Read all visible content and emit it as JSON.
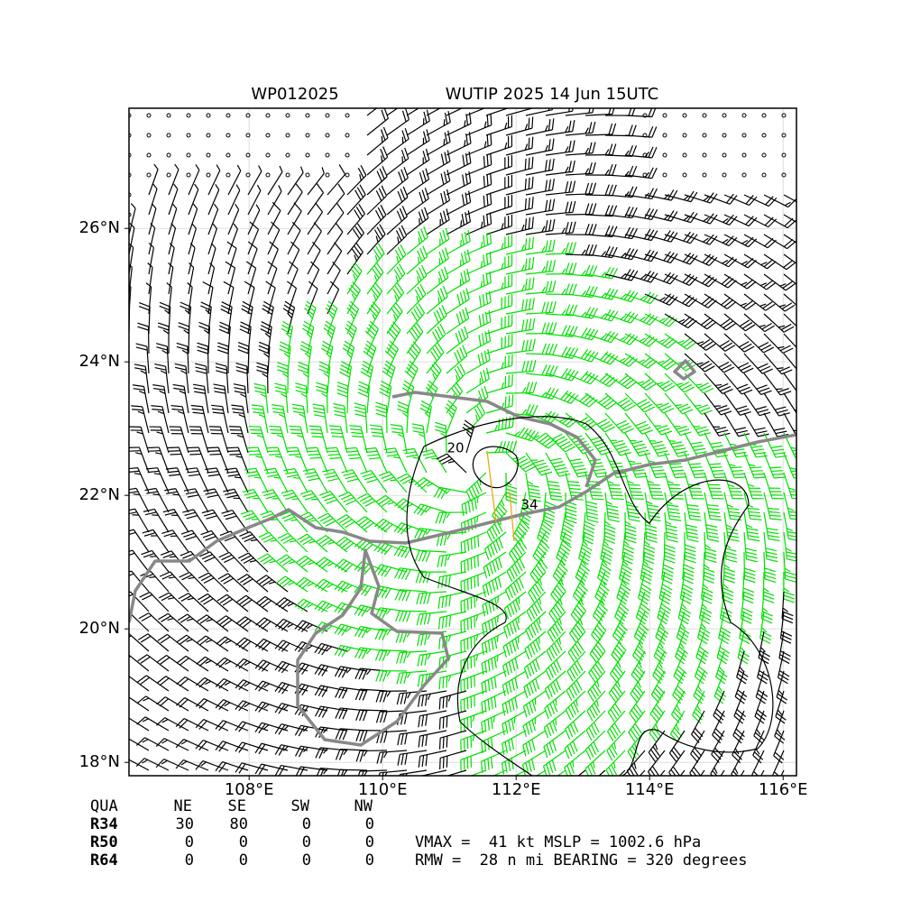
{
  "header": {
    "storm_id": "WP012025",
    "title": "WUTIP 2025 14 Jun 15UTC"
  },
  "map": {
    "xlim": [
      106.2,
      116.2
    ],
    "ylim": [
      17.8,
      27.8
    ],
    "xticks": [
      {
        "value": 108,
        "label": "108°E"
      },
      {
        "value": 110,
        "label": "110°E"
      },
      {
        "value": 112,
        "label": "112°E"
      },
      {
        "value": 114,
        "label": "114°E"
      },
      {
        "value": 116,
        "label": "116°E"
      }
    ],
    "yticks": [
      {
        "value": 18,
        "label": "18°N"
      },
      {
        "value": 20,
        "label": "20°N"
      },
      {
        "value": 22,
        "label": "22°N"
      },
      {
        "value": 24,
        "label": "24°N"
      },
      {
        "value": 26,
        "label": "26°N"
      }
    ],
    "contour_labels": [
      20,
      34
    ]
  },
  "table": {
    "header": [
      "QUA",
      "NE",
      "SE",
      "SW",
      "NW"
    ],
    "rows": [
      [
        "R34",
        30,
        80,
        0,
        0
      ],
      [
        "R50",
        0,
        0,
        0,
        0
      ],
      [
        "R64",
        0,
        0,
        0,
        0
      ]
    ]
  },
  "summary": [
    "VMAX =  41 kt MSLP = 1002.6 hPa",
    "RMW =  28 n mi BEARING = 320 degrees"
  ]
}
